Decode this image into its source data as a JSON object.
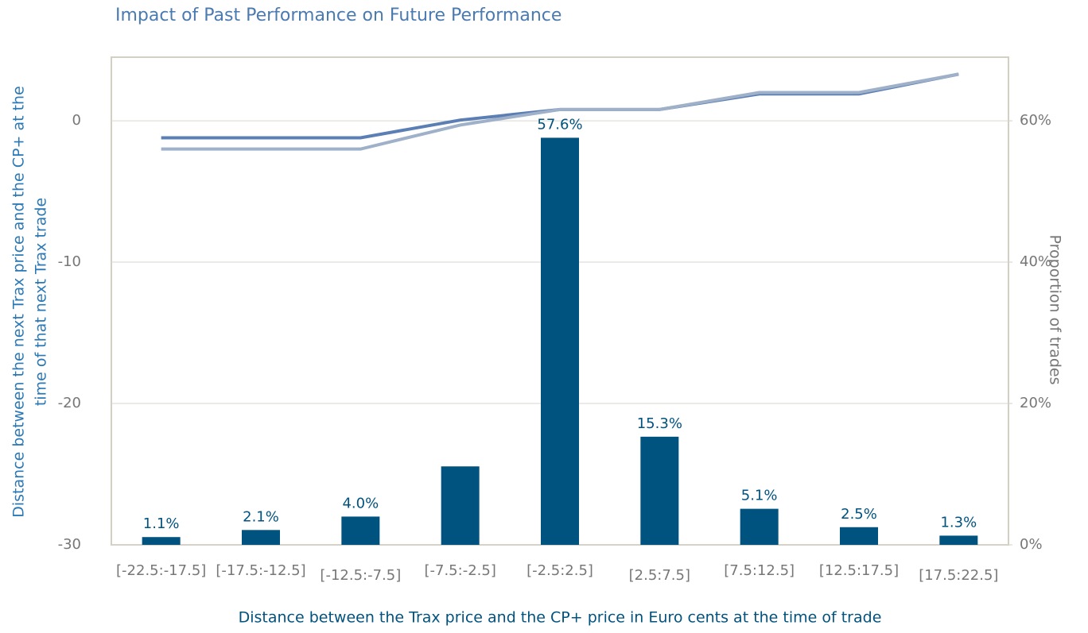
{
  "chart_data": {
    "type": "bar",
    "title": "Impact of Past Performance on Future Performance",
    "x_label": "Distance between the Trax price and the CP+ price in Euro cents at the time of trade",
    "y_label": [
      "Distance between the next Trax price and the CP+ at the",
      "time of that next Trax trade"
    ],
    "y2_label": "Proportion of trades",
    "categories": [
      "[-22.5:-17.5]",
      "[-17.5:-12.5]",
      "[-12.5:-7.5]",
      "[-7.5:-2.5]",
      "[-2.5:2.5]",
      "[2.5:7.5]",
      "[7.5:12.5]",
      "[12.5:17.5]",
      "[17.5:22.5]"
    ],
    "series": [
      {
        "type": "bar",
        "axis": "y2",
        "color": "#00527f",
        "values": [
          1.1,
          2.1,
          4.0,
          11.1,
          57.6,
          15.3,
          5.1,
          2.5,
          1.3
        ],
        "value_labels": [
          "1.1%",
          "2.1%",
          "4.0%",
          null,
          "57.6%",
          "15.3%",
          "5.1%",
          "2.5%",
          "1.3%"
        ]
      },
      {
        "type": "line",
        "axis": "y",
        "color": "#5b7fb4",
        "values": [
          -1.2,
          -1.2,
          -1.2,
          0.05,
          0.8,
          0.8,
          1.9,
          1.9,
          3.3
        ]
      },
      {
        "type": "line",
        "axis": "y",
        "color": "#9fb0c9",
        "values": [
          -2.0,
          -2.0,
          -2.0,
          -0.3,
          0.8,
          0.8,
          2.0,
          2.0,
          3.3
        ]
      }
    ],
    "ylim": [
      -30,
      4.5
    ],
    "yticks": [
      0,
      -10,
      -20,
      -30
    ],
    "y2lim": [
      0,
      69
    ],
    "y2ticks": [
      {
        "value": 60,
        "label": "60%"
      },
      {
        "value": 40,
        "label": "40%"
      },
      {
        "value": 20,
        "label": "20%"
      },
      {
        "value": 0,
        "label": "0%"
      }
    ],
    "grid": true
  }
}
